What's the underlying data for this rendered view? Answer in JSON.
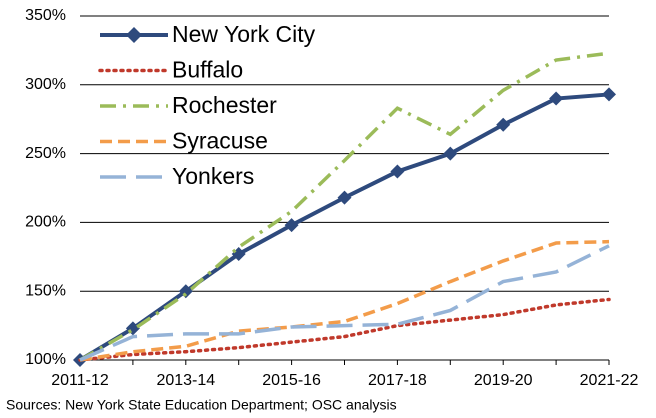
{
  "chart_data": {
    "type": "line",
    "categories": [
      "2011-12",
      null,
      "2013-14",
      null,
      "2015-16",
      null,
      "2017-18",
      null,
      "2019-20",
      null,
      "2021-22"
    ],
    "series": [
      {
        "name": "New York City",
        "color": "#2e4a7d",
        "dash": "solid",
        "marker": "diamond",
        "values": [
          100,
          123,
          150,
          177,
          198,
          218,
          237,
          250,
          271,
          290,
          293
        ]
      },
      {
        "name": "Buffalo",
        "color": "#c0392b",
        "dash": "dotted",
        "values": [
          100,
          104,
          106,
          109,
          113,
          117,
          125,
          129,
          133,
          140,
          144
        ]
      },
      {
        "name": "Rochester",
        "color": "#9bbb59",
        "dash": "dashdot",
        "values": [
          100,
          122,
          148,
          182,
          208,
          245,
          283,
          264,
          296,
          318,
          323
        ]
      },
      {
        "name": "Syracuse",
        "color": "#f39c4a",
        "dash": "dashed",
        "values": [
          100,
          106,
          110,
          121,
          124,
          128,
          141,
          157,
          172,
          185,
          186
        ]
      },
      {
        "name": "Yonkers",
        "color": "#95b3d7",
        "dash": "longdash",
        "values": [
          100,
          117,
          119,
          119,
          124,
          125,
          126,
          136,
          157,
          164,
          183
        ]
      }
    ],
    "ylim": [
      100,
      350
    ],
    "yticks": [
      {
        "value": 100,
        "label": "100%"
      },
      {
        "value": 150,
        "label": "150%"
      },
      {
        "value": 200,
        "label": "200%"
      },
      {
        "value": 250,
        "label": "250%"
      },
      {
        "value": 300,
        "label": "300%"
      },
      {
        "value": 350,
        "label": "350%"
      }
    ],
    "grid": true,
    "legend": "upper left",
    "source": "Sources: New York State Education Department; OSC analysis"
  }
}
